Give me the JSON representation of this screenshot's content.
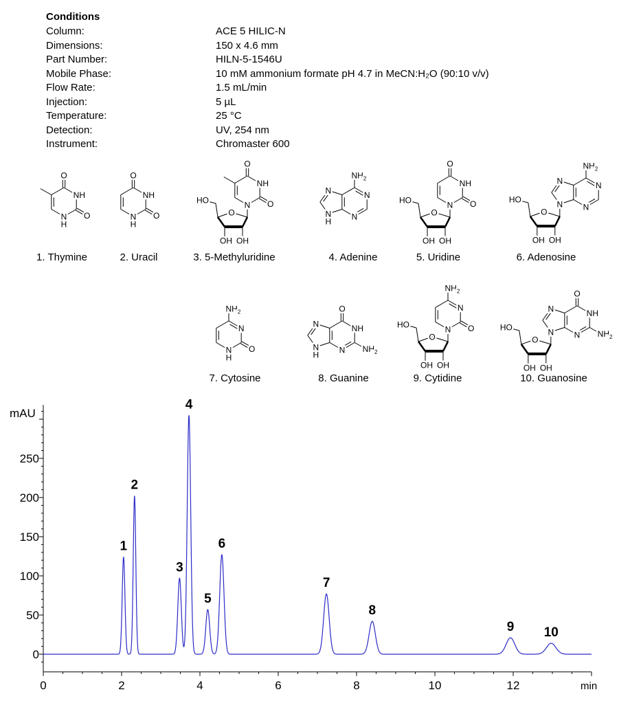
{
  "conditions": {
    "heading": "Conditions",
    "rows": [
      {
        "label": "Column:",
        "value": "ACE 5 HILIC-N"
      },
      {
        "label": "Dimensions:",
        "value": "150 x 4.6 mm"
      },
      {
        "label": "Part Number:",
        "value": "HILN-5-1546U"
      },
      {
        "label": "Mobile Phase:",
        "value": "10 mM ammonium formate pH 4.7 in MeCN:H₂O (90:10 v/v)"
      },
      {
        "label": "Flow Rate:",
        "value": "1.5 mL/min"
      },
      {
        "label": "Injection:",
        "value": "5 µL"
      },
      {
        "label": "Temperature:",
        "value": "25 °C"
      },
      {
        "label": "Detection:",
        "value": "UV, 254 nm"
      },
      {
        "label": "Instrument:",
        "value": "Chromaster 600"
      }
    ]
  },
  "compounds": [
    {
      "label": "1. Thymine"
    },
    {
      "label": "2. Uracil"
    },
    {
      "label": "3. 5-Methyluridine"
    },
    {
      "label": "4. Adenine"
    },
    {
      "label": "5. Uridine"
    },
    {
      "label": "6. Adenosine"
    },
    {
      "label": "7. Cytosine"
    },
    {
      "label": "8. Guanine"
    },
    {
      "label": "9. Cytidine"
    },
    {
      "label": "10. Guanosine"
    }
  ],
  "structure_atoms": {
    "O": "O",
    "N": "N",
    "NH": "NH",
    "H": "H",
    "OH": "OH",
    "HO": "HO",
    "NH2": "NH",
    "sub2": "2"
  },
  "chart_data": {
    "type": "line",
    "title": "",
    "xlabel": "min",
    "ylabel": "mAU",
    "xlim": [
      0,
      14
    ],
    "ylim": [
      -20,
      320
    ],
    "xticks": [
      0,
      2,
      4,
      6,
      8,
      10,
      12
    ],
    "yticks": [
      0,
      50,
      100,
      150,
      200,
      250
    ],
    "grid": false,
    "line_color": "#2a2ac8",
    "peaks": [
      {
        "label": "1",
        "rt": 2.05,
        "height": 124,
        "width": 0.035
      },
      {
        "label": "2",
        "rt": 2.33,
        "height": 202,
        "width": 0.033
      },
      {
        "label": "3",
        "rt": 3.48,
        "height": 97,
        "width": 0.045
      },
      {
        "label": "4",
        "rt": 3.72,
        "height": 305,
        "width": 0.045
      },
      {
        "label": "5",
        "rt": 4.2,
        "height": 57,
        "width": 0.05
      },
      {
        "label": "6",
        "rt": 4.56,
        "height": 127,
        "width": 0.055
      },
      {
        "label": "7",
        "rt": 7.23,
        "height": 77,
        "width": 0.07
      },
      {
        "label": "8",
        "rt": 8.4,
        "height": 42,
        "width": 0.08
      },
      {
        "label": "9",
        "rt": 11.93,
        "height": 21,
        "width": 0.11
      },
      {
        "label": "10",
        "rt": 12.97,
        "height": 14,
        "width": 0.12
      }
    ]
  }
}
